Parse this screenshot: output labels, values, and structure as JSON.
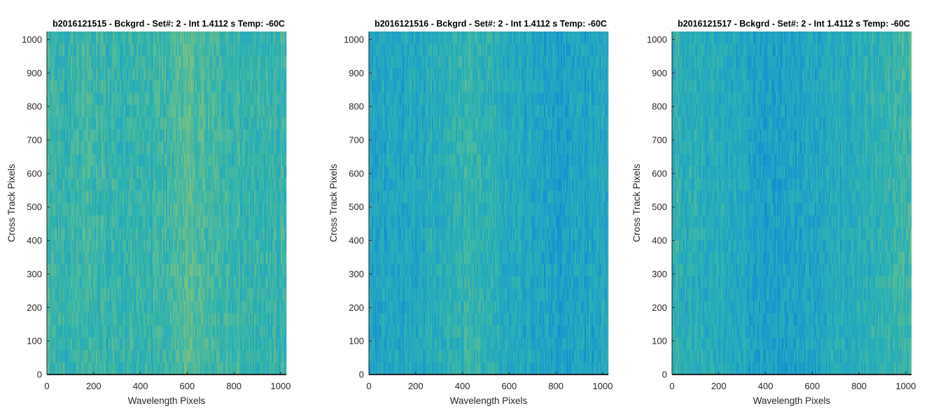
{
  "chart_data": [
    {
      "type": "heatmap",
      "title": "b2016121515 - Bckgrd - Set#: 2 - Int 1.4112 s Temp: -60C",
      "xlabel": "Wavelength Pixels",
      "ylabel": "Cross Track Pixels",
      "xlim": [
        0,
        1024
      ],
      "ylim": [
        0,
        1024
      ],
      "xticks": [
        0,
        200,
        400,
        600,
        800,
        1000
      ],
      "yticks": [
        0,
        100,
        200,
        300,
        400,
        500,
        600,
        700,
        800,
        900,
        1000
      ],
      "colormap": [
        "#0a84d6",
        "#1fa1c8",
        "#2fb3b0",
        "#66bd8c",
        "#b1c561"
      ],
      "column_intensity_profile": [
        0.55,
        0.52,
        0.55,
        0.5,
        0.52,
        0.56,
        0.66,
        0.6,
        0.52,
        0.5,
        0.53
      ]
    },
    {
      "type": "heatmap",
      "title": "b2016121516 - Bckgrd - Set#: 2 - Int 1.4112 s Temp: -60C",
      "xlabel": "Wavelength Pixels",
      "ylabel": "Cross Track Pixels",
      "xlim": [
        0,
        1024
      ],
      "ylim": [
        0,
        1024
      ],
      "xticks": [
        0,
        200,
        400,
        600,
        800,
        1000
      ],
      "yticks": [
        0,
        100,
        200,
        300,
        400,
        500,
        600,
        700,
        800,
        900,
        1000
      ],
      "colormap": [
        "#0a84d6",
        "#1fa1c8",
        "#2fb3b0",
        "#66bd8c",
        "#b1c561"
      ],
      "column_intensity_profile": [
        0.32,
        0.3,
        0.36,
        0.42,
        0.5,
        0.46,
        0.38,
        0.3,
        0.26,
        0.3,
        0.36
      ]
    },
    {
      "type": "heatmap",
      "title": "b2016121517 - Bckgrd - Set#: 2 - Int 1.4112 s Temp: -60C",
      "xlabel": "Wavelength Pixels",
      "ylabel": "Cross Track Pixels",
      "xlim": [
        0,
        1024
      ],
      "ylim": [
        0,
        1024
      ],
      "xticks": [
        0,
        200,
        400,
        600,
        800,
        1000
      ],
      "yticks": [
        0,
        100,
        200,
        300,
        400,
        500,
        600,
        700,
        800,
        900,
        1000
      ],
      "colormap": [
        "#0a84d6",
        "#1fa1c8",
        "#2fb3b0",
        "#66bd8c",
        "#b1c561"
      ],
      "column_intensity_profile": [
        0.46,
        0.44,
        0.4,
        0.32,
        0.26,
        0.28,
        0.33,
        0.38,
        0.45,
        0.5,
        0.56
      ]
    }
  ]
}
